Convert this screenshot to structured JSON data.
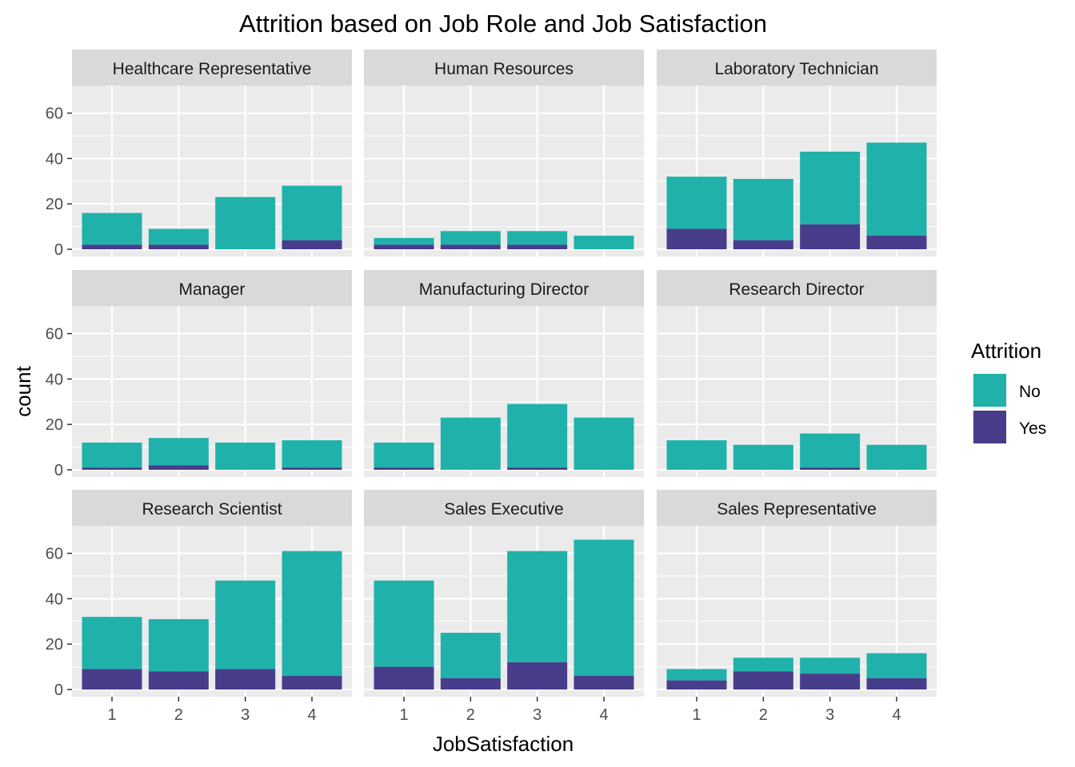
{
  "chart_data": {
    "type": "bar",
    "stacked": true,
    "title": "Attrition based on Job Role and Job Satisfaction",
    "xlabel": "JobSatisfaction",
    "ylabel": "count",
    "categories": [
      "1",
      "2",
      "3",
      "4"
    ],
    "yticks": [
      0,
      20,
      40,
      60
    ],
    "ylim": [
      0,
      69
    ],
    "grid": true,
    "legend": {
      "title": "Attrition",
      "placement": "right",
      "items": [
        {
          "label": "No",
          "color": "#20B2AA"
        },
        {
          "label": "Yes",
          "color": "#483D8B"
        }
      ]
    },
    "panels": [
      {
        "title": "Healthcare Representative",
        "no": [
          14,
          7,
          23,
          24
        ],
        "yes": [
          2,
          2,
          0,
          4
        ]
      },
      {
        "title": "Human Resources",
        "no": [
          3,
          6,
          6,
          6
        ],
        "yes": [
          2,
          2,
          2,
          0
        ]
      },
      {
        "title": "Laboratory Technician",
        "no": [
          23,
          27,
          32,
          41
        ],
        "yes": [
          9,
          4,
          11,
          6
        ]
      },
      {
        "title": "Manager",
        "no": [
          11,
          12,
          12,
          12
        ],
        "yes": [
          1,
          2,
          0,
          1
        ]
      },
      {
        "title": "Manufacturing Director",
        "no": [
          11,
          23,
          28,
          23
        ],
        "yes": [
          1,
          0,
          1,
          0
        ]
      },
      {
        "title": "Research Director",
        "no": [
          13,
          11,
          15,
          11
        ],
        "yes": [
          0,
          0,
          1,
          0
        ]
      },
      {
        "title": "Research Scientist",
        "no": [
          23,
          23,
          39,
          55
        ],
        "yes": [
          9,
          8,
          9,
          6
        ]
      },
      {
        "title": "Sales Executive",
        "no": [
          38,
          20,
          49,
          60
        ],
        "yes": [
          10,
          5,
          12,
          6
        ]
      },
      {
        "title": "Sales Representative",
        "no": [
          5,
          6,
          7,
          11
        ],
        "yes": [
          4,
          8,
          7,
          5
        ]
      }
    ]
  }
}
